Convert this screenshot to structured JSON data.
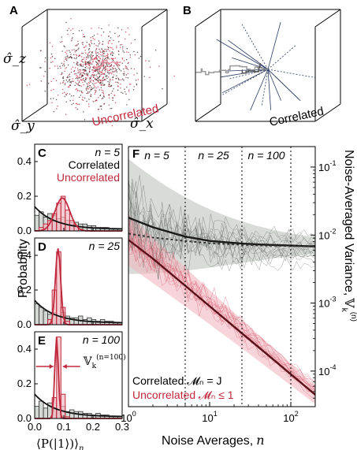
{
  "colors": {
    "correlated": "#2b2b2b",
    "correlated_fill": "#b8beb8",
    "uncorrelated": "#c0283c",
    "uncorrelated_fill": "#f2b8c0",
    "uncorr_light": "#e88fa0"
  },
  "panels": {
    "A": {
      "label": "A",
      "axis_z": "σ̂_z",
      "axis_y": "σ̂_y",
      "axis_x": "σ̂_x",
      "legend": "Uncorrelated"
    },
    "B": {
      "label": "B",
      "legend": "Correlated"
    }
  },
  "chart_data": [
    {
      "id": "C",
      "type": "bar",
      "label": "C",
      "annotation_n": "n = 5",
      "legend": [
        "Correlated",
        "Uncorrelated"
      ],
      "xlim": [
        0,
        0.3
      ],
      "ylim": [
        0,
        0.5
      ],
      "yticks": [
        "0.0",
        "0.2",
        "0.4"
      ],
      "bin_width": 0.015,
      "series": [
        {
          "name": "Correlated",
          "values": [
            0.09,
            0.11,
            0.08,
            0.1,
            0.09,
            0.07,
            0.08,
            0.06,
            0.05,
            0.05,
            0.04,
            0.04,
            0.03,
            0.03,
            0.02,
            0.02,
            0.02,
            0.01,
            0.01,
            0.01
          ]
        },
        {
          "name": "Uncorrelated",
          "values": [
            0,
            0.02,
            0.04,
            0.06,
            0.1,
            0.16,
            0.2,
            0.12,
            0.06,
            0.03,
            0.01,
            0,
            0,
            0,
            0,
            0,
            0,
            0,
            0,
            0
          ]
        }
      ]
    },
    {
      "id": "D",
      "type": "bar",
      "label": "D",
      "annotation_n": "n = 25",
      "xlim": [
        0,
        0.3
      ],
      "ylim": [
        0,
        0.5
      ],
      "yticks": [
        "0.0",
        "0.2",
        "0.4"
      ],
      "ylabel": "Probability",
      "bin_width": 0.015,
      "series": [
        {
          "name": "Correlated",
          "values": [
            0.12,
            0.1,
            0.08,
            0.06,
            0.07,
            0.05,
            0.07,
            0.05,
            0.04,
            0.04,
            0.05,
            0.03,
            0.04,
            0.03,
            0.02,
            0.03,
            0.02,
            0.02,
            0.01,
            0.01
          ]
        },
        {
          "name": "Uncorrelated",
          "values": [
            0,
            0,
            0,
            0.03,
            0.2,
            0.42,
            0.1,
            0.02,
            0,
            0,
            0,
            0,
            0,
            0,
            0,
            0,
            0,
            0,
            0,
            0
          ]
        }
      ]
    },
    {
      "id": "E",
      "type": "bar",
      "label": "E",
      "annotation_n": "n = 100",
      "variance_label": "𝕍",
      "variance_sub": "k",
      "variance_sup": "(n=100)",
      "xlim": [
        0,
        0.3
      ],
      "ylim": [
        0,
        0.5
      ],
      "yticks": [
        "0.0",
        "0.2",
        "0.4"
      ],
      "xticks": [
        "0.0",
        "0.1",
        "0.2",
        "0.3"
      ],
      "xlabel": "⟨P(|1⟩)⟩",
      "xlabel_sub": "n",
      "bin_width": 0.015,
      "series": [
        {
          "name": "Correlated",
          "values": [
            0.07,
            0.1,
            0.06,
            0.09,
            0.06,
            0.05,
            0.07,
            0.04,
            0.05,
            0.04,
            0.04,
            0.03,
            0.03,
            0.02,
            0.03,
            0.02,
            0.02,
            0.01,
            0.01,
            0.01
          ]
        },
        {
          "name": "Uncorrelated",
          "values": [
            0,
            0,
            0,
            0,
            0.12,
            0.47,
            0.14,
            0.01,
            0,
            0,
            0,
            0,
            0,
            0,
            0,
            0,
            0,
            0,
            0,
            0
          ]
        }
      ]
    },
    {
      "id": "F",
      "type": "line",
      "label": "F",
      "xscale": "log",
      "yscale": "log",
      "xlim": [
        1,
        200
      ],
      "ylim": [
        3e-05,
        0.2
      ],
      "xticks": [
        "10",
        "10",
        "10"
      ],
      "xtick_exps": [
        "0",
        "1",
        "2"
      ],
      "yticks": [
        "10",
        "10",
        "10",
        "10"
      ],
      "ytick_exps": [
        "-1",
        "-2",
        "-3",
        "-4"
      ],
      "xlabel": "Noise Averages,",
      "xlabel_var": "n",
      "ylabel": "Noise-Averaged Variance,",
      "ylabel_var": "𝕍",
      "ylabel_sub": "k",
      "ylabel_sup": "(n)",
      "vlines": [
        5,
        25,
        100
      ],
      "vline_labels": [
        "n = 5",
        "n = 25",
        "n = 100"
      ],
      "legend": [
        "Correlated 𝓜ₙ = J",
        "Uncorrelated 𝓜ₙ ≤ 1"
      ],
      "series": [
        {
          "name": "Correlated",
          "x": [
            1,
            2,
            5,
            10,
            25,
            50,
            100,
            200
          ],
          "values": [
            0.018,
            0.013,
            0.0095,
            0.0082,
            0.0075,
            0.0072,
            0.007,
            0.0068
          ]
        },
        {
          "name": "Correlated (dotted)",
          "x": [
            1,
            2,
            5,
            10,
            25,
            50,
            100,
            200
          ],
          "values": [
            0.0105,
            0.0092,
            0.0082,
            0.0076,
            0.0072,
            0.007,
            0.0069,
            0.0068
          ]
        },
        {
          "name": "Uncorrelated",
          "x": [
            1,
            2,
            5,
            10,
            25,
            50,
            100,
            200
          ],
          "values": [
            0.0085,
            0.0045,
            0.0018,
            0.0009,
            0.00036,
            0.00018,
            9e-05,
            4.5e-05
          ]
        }
      ]
    }
  ]
}
